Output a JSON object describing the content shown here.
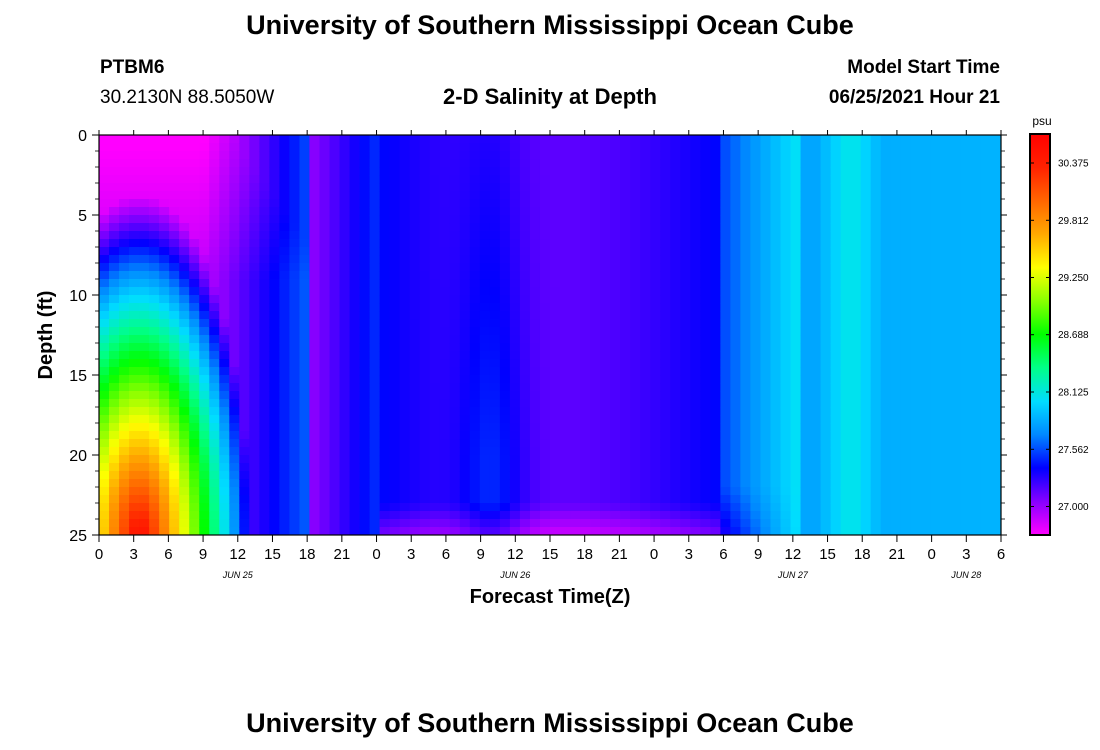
{
  "header": {
    "title": "University of Southern Mississippi Ocean Cube",
    "station_id": "PTBM6",
    "station_coords": "30.2130N  88.5050W",
    "chart_title": "2-D Salinity at Depth",
    "model_start_label": "Model Start Time",
    "model_start_value": "06/25/2021 Hour 21"
  },
  "footer": {
    "title": "University of Southern Mississippi Ocean Cube"
  },
  "chart_data": {
    "type": "heatmap",
    "title": "2-D Salinity at Depth",
    "xlabel": "Forecast Time(Z)",
    "ylabel": "Depth (ft)",
    "x_ticks": [
      "0",
      "3",
      "6",
      "9",
      "12",
      "15",
      "18",
      "21",
      "0",
      "3",
      "6",
      "9",
      "12",
      "15",
      "18",
      "21",
      "0",
      "3",
      "6",
      "9",
      "12",
      "15",
      "18",
      "21",
      "0",
      "3",
      "6"
    ],
    "date_labels": [
      {
        "tick_index": 4,
        "label": "JUN 25"
      },
      {
        "tick_index": 12,
        "label": "JUN 26"
      },
      {
        "tick_index": 20,
        "label": "JUN 27"
      },
      {
        "tick_index": 25,
        "label": "JUN 28"
      }
    ],
    "y_ticks": [
      "0",
      "5",
      "10",
      "15",
      "20",
      "25"
    ],
    "ylim": [
      0,
      25
    ],
    "y_inverted": true,
    "colorbar": {
      "unit": "psu",
      "labels": [
        "30.375",
        "29.812",
        "29.250",
        "28.688",
        "28.125",
        "27.562",
        "27.000"
      ],
      "range": [
        26.72,
        30.65
      ],
      "colors": [
        "#ff00ff",
        "#8800ff",
        "#0000ff",
        "#0088ff",
        "#00ddff",
        "#00ff88",
        "#00ff00",
        "#88ff00",
        "#ffff00",
        "#ffaa00",
        "#ff6600",
        "#ff2200",
        "#ff0000"
      ]
    }
  }
}
